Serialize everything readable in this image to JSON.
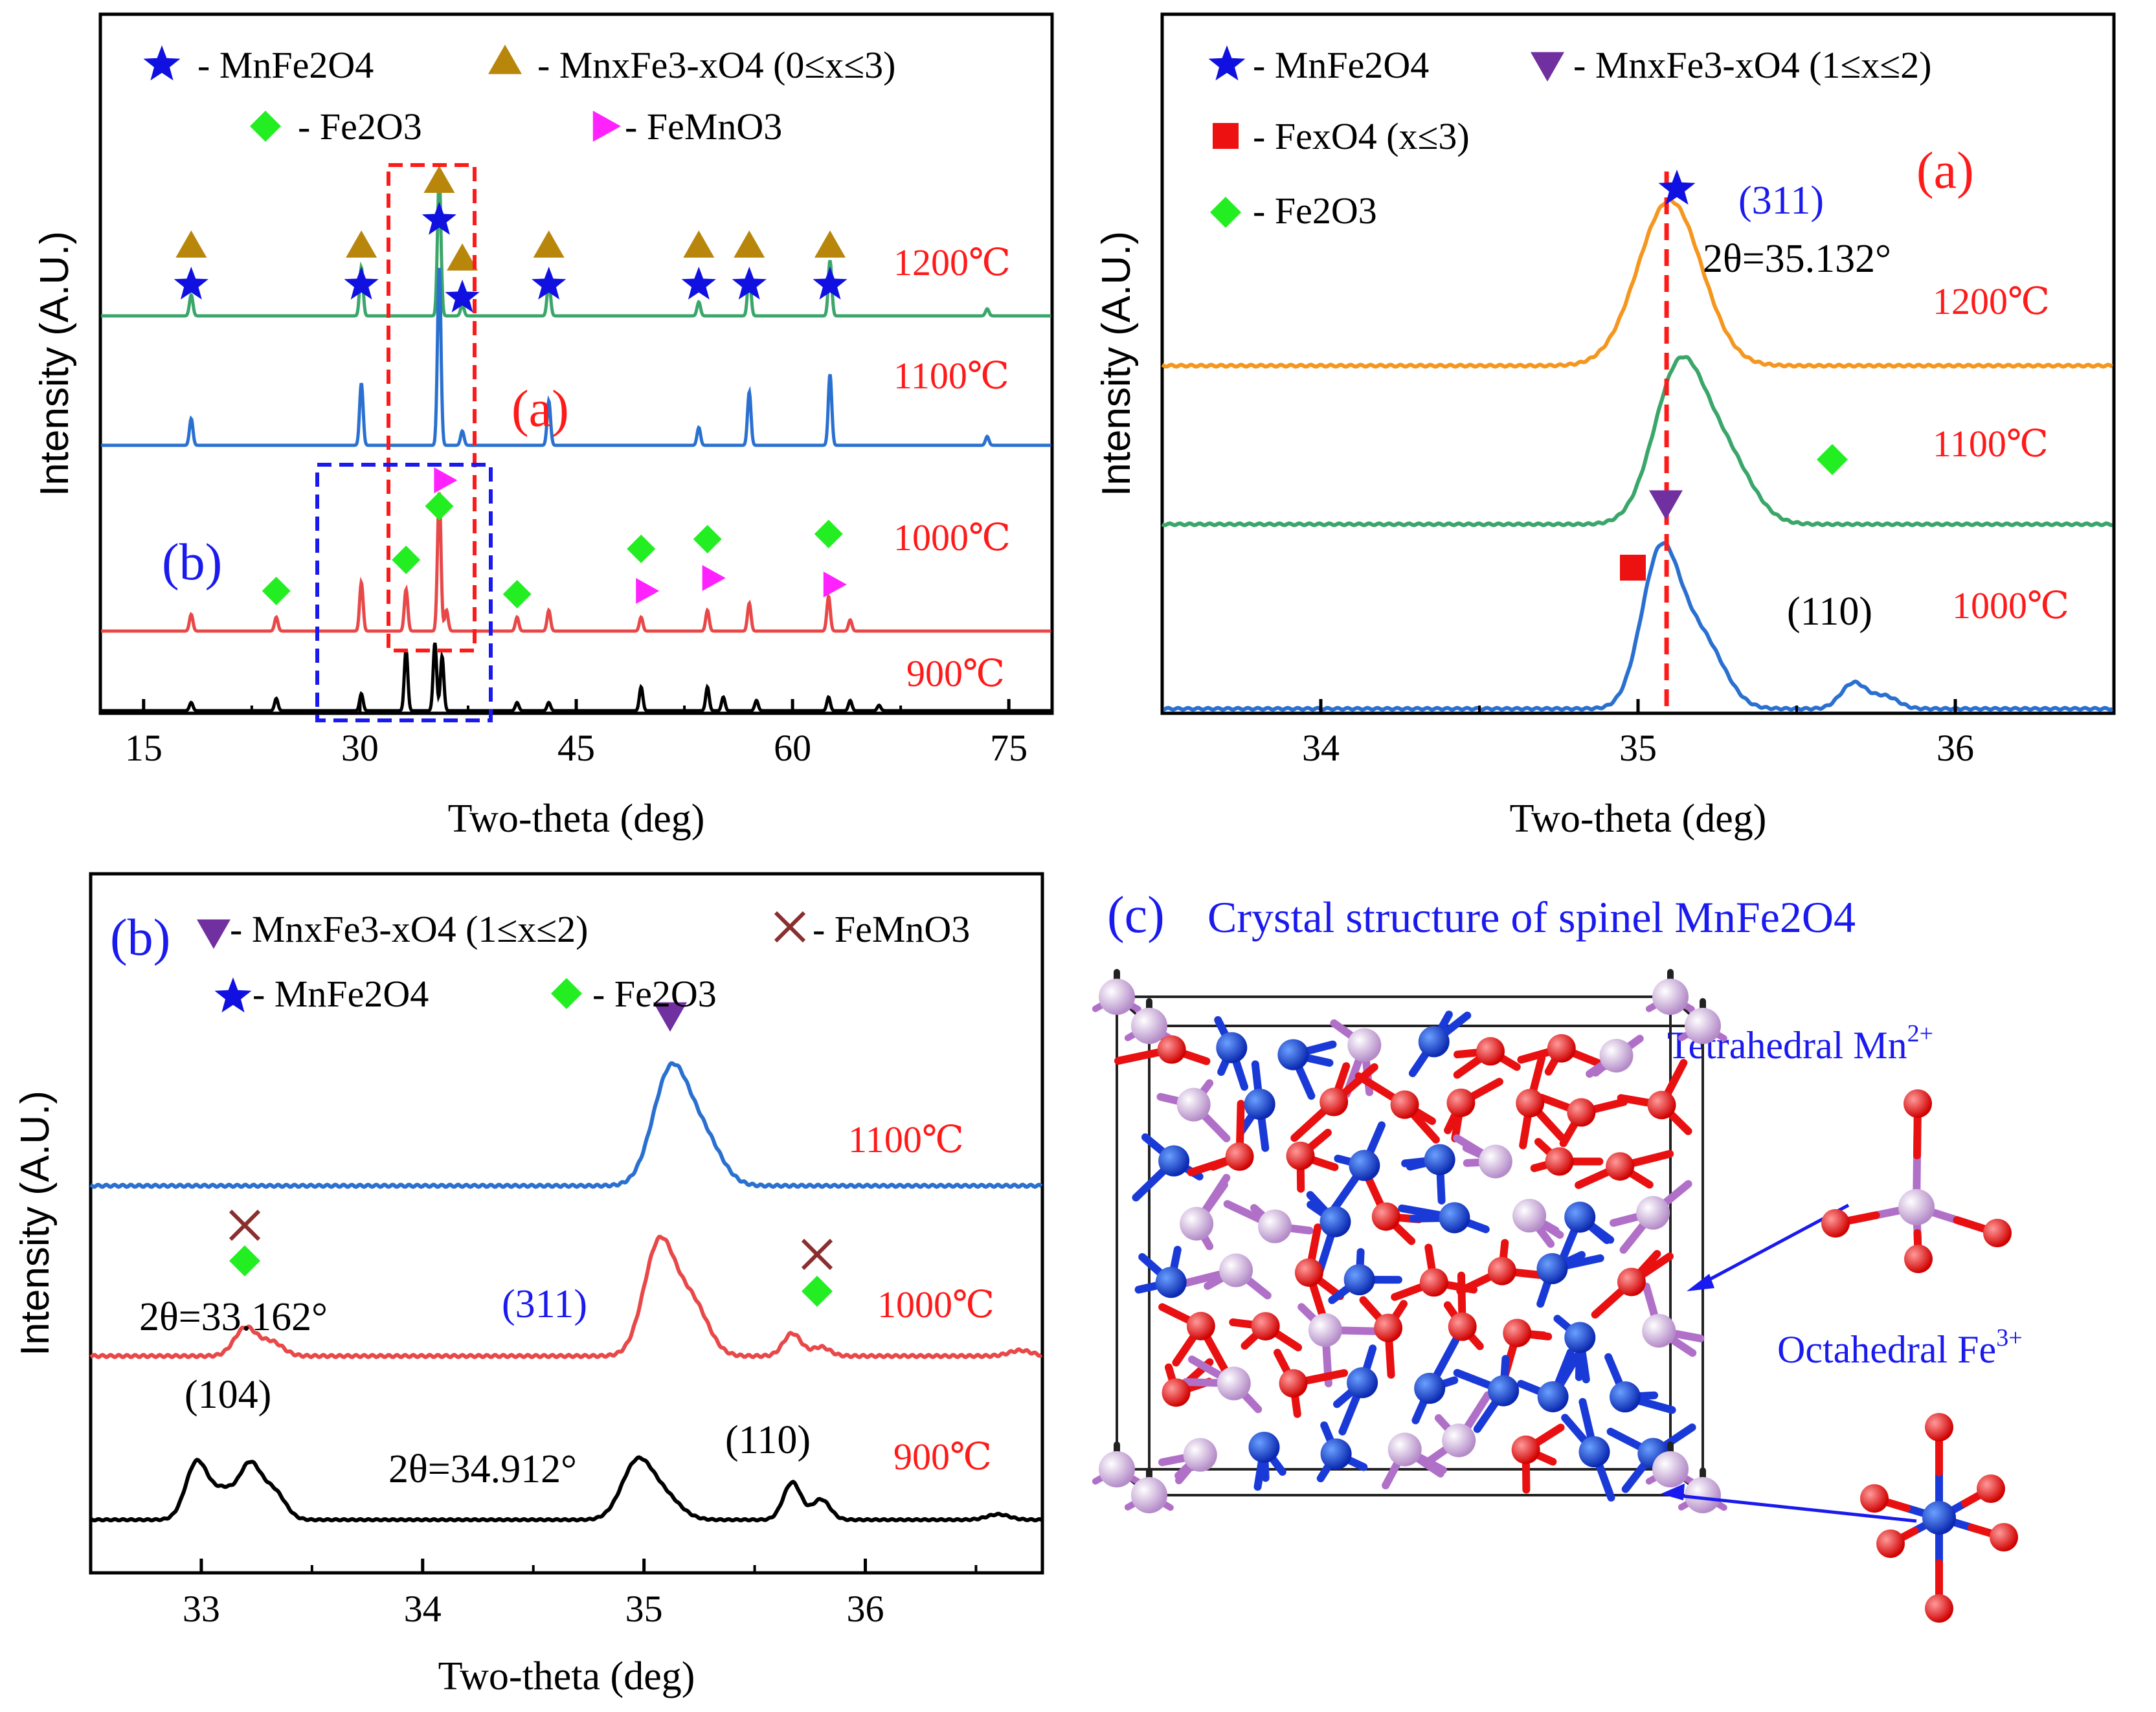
{
  "colors": {
    "star": "#1010e0",
    "triangle": "#b8860b",
    "diamond": "#22ee22",
    "pointer": "#ff22ff",
    "inv_triangle": "#7030a0",
    "square": "#ee1111",
    "cross": "#8b2e2e",
    "t1200_a": "#3aa66a",
    "t1100_a": "#2a70d0",
    "t1000_a": "#e84848",
    "t900_a": "#000000",
    "t1200_b": "#f5961e",
    "t1100_b": "#3aa66a",
    "t1000_b": "#2a70d0",
    "red_text": "#ff1a1a",
    "blue_text": "#1a1aee",
    "mn_atom": "#c8a2d8",
    "fe_atom": "#1040d0",
    "o_atom": "#ee1010"
  },
  "chart_data": [
    {
      "id": "main",
      "type": "line",
      "xlabel": "Two-theta (deg)",
      "ylabel": "Intensity (A.U.)",
      "xlim": [
        12,
        78
      ],
      "xticks": [
        "15",
        "30",
        "45",
        "60",
        "75"
      ],
      "legend": {
        "star": "- MnFe2O4",
        "triangle": "- MnxFe3-xO4 (0≤x≤3)",
        "diamond": "- Fe2O3",
        "pointer": "- FeMnO3"
      },
      "series": [
        {
          "name": "1200℃",
          "peaks": [
            [
              18.3,
              0.15
            ],
            [
              30.1,
              0.35
            ],
            [
              35.5,
              1.0
            ],
            [
              37.1,
              0.08
            ],
            [
              43.1,
              0.25
            ],
            [
              53.5,
              0.1
            ],
            [
              57.0,
              0.3
            ],
            [
              62.6,
              0.4
            ],
            [
              73.5,
              0.05
            ]
          ]
        },
        {
          "name": "1100℃",
          "peaks": [
            [
              18.3,
              0.15
            ],
            [
              30.1,
              0.35
            ],
            [
              35.5,
              1.0
            ],
            [
              37.1,
              0.08
            ],
            [
              43.1,
              0.25
            ],
            [
              53.5,
              0.1
            ],
            [
              57.0,
              0.3
            ],
            [
              62.6,
              0.4
            ],
            [
              73.5,
              0.05
            ]
          ]
        },
        {
          "name": "1000℃",
          "peaks": [
            [
              18.3,
              0.12
            ],
            [
              24.2,
              0.1
            ],
            [
              30.1,
              0.35
            ],
            [
              33.2,
              0.3
            ],
            [
              35.5,
              1.0
            ],
            [
              36.0,
              0.15
            ],
            [
              40.9,
              0.1
            ],
            [
              43.1,
              0.15
            ],
            [
              49.5,
              0.1
            ],
            [
              54.1,
              0.15
            ],
            [
              57.0,
              0.2
            ],
            [
              62.5,
              0.25
            ],
            [
              64.0,
              0.08
            ]
          ]
        },
        {
          "name": "900℃",
          "peaks": [
            [
              18.3,
              0.12
            ],
            [
              24.2,
              0.18
            ],
            [
              30.1,
              0.25
            ],
            [
              33.2,
              0.9
            ],
            [
              35.2,
              1.0
            ],
            [
              35.7,
              0.8
            ],
            [
              40.9,
              0.12
            ],
            [
              43.1,
              0.12
            ],
            [
              49.5,
              0.35
            ],
            [
              54.1,
              0.35
            ],
            [
              55.2,
              0.2
            ],
            [
              57.5,
              0.15
            ],
            [
              62.5,
              0.2
            ],
            [
              64.0,
              0.15
            ],
            [
              66.0,
              0.08
            ]
          ]
        }
      ],
      "star_positions": [
        18.3,
        30.1,
        35.5,
        37.1,
        43.1,
        53.5,
        57.0,
        62.6
      ],
      "triangle_positions": [
        18.3,
        30.1,
        35.5,
        37.1,
        43.1,
        53.5,
        57.0,
        62.6
      ],
      "diamond_positions": [
        24.2,
        33.2,
        35.5,
        40.9,
        49.5,
        54.1,
        62.5
      ],
      "pointer_positions": [
        35.5,
        49.5,
        54.1,
        62.5
      ],
      "annotations": {
        "a": "(a)",
        "b": "(b)"
      }
    },
    {
      "id": "zoom_a",
      "type": "line",
      "xlabel": "Two-theta (deg)",
      "ylabel": "Intensity (A.U.)",
      "xlim": [
        33.5,
        36.5
      ],
      "xticks": [
        "34",
        "35",
        "36"
      ],
      "legend": {
        "star": "- MnFe2O4",
        "inv_triangle": "- MnxFe3-xO4 (1≤x≤2)",
        "square": "- FexO4 (x≤3)",
        "diamond": "- Fe2O3"
      },
      "series": [
        {
          "name": "1200℃",
          "peaks": [
            [
              35.1,
              1.0,
              0.1
            ]
          ]
        },
        {
          "name": "1100℃",
          "peaks": [
            [
              35.13,
              1.0,
              0.08
            ],
            [
              35.28,
              0.4,
              0.08
            ]
          ]
        },
        {
          "name": "1000℃",
          "peaks": [
            [
              35.07,
              1.0,
              0.06
            ],
            [
              35.2,
              0.45,
              0.07
            ],
            [
              35.68,
              0.17,
              0.04
            ],
            [
              35.78,
              0.08,
              0.04
            ]
          ]
        }
      ],
      "annotations": {
        "panel": "(a)",
        "hkl311": "(311)",
        "two_theta": "2θ=35.132°",
        "hkl110": "(110)"
      },
      "dashed_line_x": 35.09
    },
    {
      "id": "zoom_b",
      "type": "line",
      "xlabel": "Two-theta (deg)",
      "ylabel": "Intensity (A.U.)",
      "xlim": [
        32.5,
        36.8
      ],
      "xticks": [
        "33",
        "34",
        "35",
        "36"
      ],
      "legend": {
        "inv_triangle": "- MnxFe3-xO4 (1≤x≤2)",
        "cross": "- FeMnO3",
        "star": "- MnFe2O4",
        "diamond": "- Fe2O3"
      },
      "series": [
        {
          "name": "1100℃",
          "peaks": [
            [
              35.12,
              1.0,
              0.08
            ],
            [
              35.27,
              0.4,
              0.08
            ]
          ]
        },
        {
          "name": "1000℃",
          "peaks": [
            [
              33.2,
              0.25,
              0.05
            ],
            [
              33.32,
              0.12,
              0.05
            ],
            [
              35.07,
              1.0,
              0.07
            ],
            [
              35.22,
              0.45,
              0.07
            ],
            [
              35.67,
              0.2,
              0.04
            ],
            [
              35.8,
              0.08,
              0.04
            ],
            [
              36.7,
              0.05,
              0.05
            ]
          ]
        },
        {
          "name": "900℃",
          "peaks": [
            [
              32.98,
              0.85,
              0.05
            ],
            [
              33.1,
              0.4,
              0.05
            ],
            [
              33.22,
              0.8,
              0.05
            ],
            [
              33.33,
              0.4,
              0.05
            ],
            [
              34.97,
              0.85,
              0.07
            ],
            [
              35.1,
              0.3,
              0.07
            ],
            [
              35.67,
              0.55,
              0.04
            ],
            [
              35.8,
              0.3,
              0.04
            ],
            [
              36.6,
              0.08,
              0.05
            ]
          ]
        }
      ],
      "annotations": {
        "panel": "(b)",
        "hkl311": "(311)",
        "two_theta_1": "2θ=33.162°",
        "hkl104": "(104)",
        "two_theta_2": "2θ=34.912°",
        "hkl110": "(110)"
      }
    }
  ],
  "crystal": {
    "title_letter": "(c)",
    "title": "Crystal structure of spinel MnFe2O4",
    "tetra_label": "Tetrahedral Mn",
    "tetra_sup": "2+",
    "octa_label": "Octahedral Fe",
    "octa_sup": "3+"
  }
}
